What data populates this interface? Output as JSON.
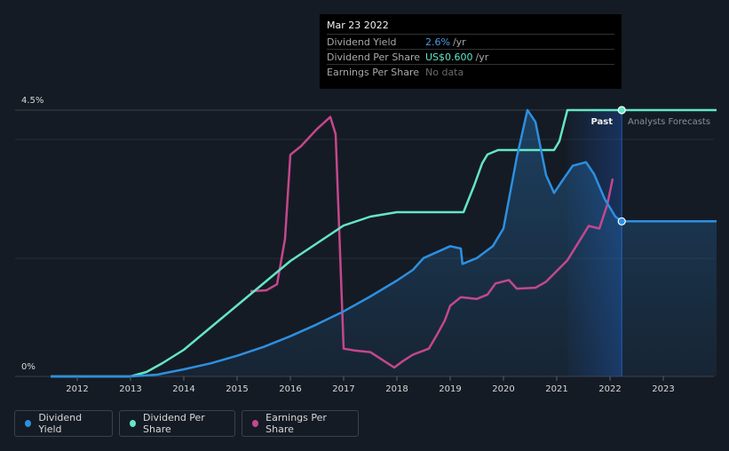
{
  "tooltip": {
    "date": "Mar 23 2022",
    "rows": [
      {
        "label": "Dividend Yield",
        "value": "2.6%",
        "unit": "/yr"
      },
      {
        "label": "Dividend Per Share",
        "value": "US$0.600",
        "unit": "/yr"
      },
      {
        "label": "Earnings Per Share",
        "value": "No data",
        "unit": ""
      }
    ]
  },
  "legend": [
    {
      "label": "Dividend Yield",
      "color": "#2d8fe0"
    },
    {
      "label": "Dividend Per Share",
      "color": "#64e6c6"
    },
    {
      "label": "Earnings Per Share",
      "color": "#c4478e"
    }
  ],
  "annotations": {
    "past": "Past",
    "forecast": "Analysts Forecasts"
  },
  "chart_data": {
    "type": "line",
    "x_ticks": [
      2012,
      2013,
      2014,
      2015,
      2016,
      2017,
      2018,
      2019,
      2020,
      2021,
      2022,
      2023
    ],
    "y_tick_labels": [
      "0%",
      "4.5%"
    ],
    "ylim_percent": [
      0,
      4.5
    ],
    "xlim": [
      2011,
      2024
    ],
    "past_boundary": 2022.22,
    "series": [
      {
        "name": "Dividend Yield",
        "unit": "%",
        "color": "#2d8fe0",
        "points": [
          [
            2011.5,
            0
          ],
          [
            2013,
            0
          ],
          [
            2013.5,
            0.03
          ],
          [
            2014,
            0.12
          ],
          [
            2014.5,
            0.22
          ],
          [
            2015,
            0.35
          ],
          [
            2015.5,
            0.5
          ],
          [
            2016,
            0.68
          ],
          [
            2016.5,
            0.88
          ],
          [
            2017,
            1.1
          ],
          [
            2017.5,
            1.35
          ],
          [
            2018,
            1.62
          ],
          [
            2018.3,
            1.8
          ],
          [
            2018.5,
            2.0
          ],
          [
            2018.8,
            2.12
          ],
          [
            2019,
            2.2
          ],
          [
            2019.2,
            2.16
          ],
          [
            2019.23,
            1.9
          ],
          [
            2019.5,
            2.0
          ],
          [
            2019.8,
            2.2
          ],
          [
            2020,
            2.5
          ],
          [
            2020.25,
            3.7
          ],
          [
            2020.45,
            4.5
          ],
          [
            2020.6,
            4.3
          ],
          [
            2020.8,
            3.4
          ],
          [
            2020.95,
            3.1
          ],
          [
            2021.1,
            3.3
          ],
          [
            2021.3,
            3.56
          ],
          [
            2021.55,
            3.62
          ],
          [
            2021.7,
            3.42
          ],
          [
            2021.9,
            3.0
          ],
          [
            2022.1,
            2.7
          ],
          [
            2022.22,
            2.62
          ],
          [
            2023,
            2.62
          ],
          [
            2024,
            2.62
          ]
        ]
      },
      {
        "name": "Dividend Per Share",
        "unit": "US$",
        "color": "#64e6c6",
        "points": [
          [
            2011.5,
            0
          ],
          [
            2013,
            0
          ],
          [
            2013.3,
            0.01
          ],
          [
            2013.6,
            0.03
          ],
          [
            2014,
            0.06
          ],
          [
            2014.5,
            0.11
          ],
          [
            2015,
            0.16
          ],
          [
            2015.5,
            0.21
          ],
          [
            2016,
            0.26
          ],
          [
            2016.5,
            0.3
          ],
          [
            2017,
            0.34
          ],
          [
            2017.5,
            0.36
          ],
          [
            2018,
            0.37
          ],
          [
            2018.5,
            0.37
          ],
          [
            2019,
            0.37
          ],
          [
            2019.25,
            0.37
          ],
          [
            2019.45,
            0.43
          ],
          [
            2019.6,
            0.48
          ],
          [
            2019.7,
            0.5
          ],
          [
            2019.9,
            0.51
          ],
          [
            2020.95,
            0.51
          ],
          [
            2021.05,
            0.53
          ],
          [
            2021.2,
            0.6
          ],
          [
            2021.4,
            0.6
          ],
          [
            2022.22,
            0.6
          ],
          [
            2024,
            0.6
          ]
        ]
      },
      {
        "name": "Earnings Per Share",
        "unit": "US$",
        "color": "#c4478e",
        "points": [
          [
            2015.25,
            0.89
          ],
          [
            2015.55,
            0.9
          ],
          [
            2015.75,
            0.97
          ],
          [
            2015.9,
            1.5
          ],
          [
            2016,
            2.48
          ],
          [
            2016.2,
            2.58
          ],
          [
            2016.5,
            2.78
          ],
          [
            2016.75,
            2.92
          ],
          [
            2016.85,
            2.72
          ],
          [
            2017,
            0.22
          ],
          [
            2017.2,
            0.2
          ],
          [
            2017.5,
            0.18
          ],
          [
            2017.8,
            0.06
          ],
          [
            2017.95,
            0.0
          ],
          [
            2018.1,
            0.07
          ],
          [
            2018.3,
            0.15
          ],
          [
            2018.6,
            0.22
          ],
          [
            2018.75,
            0.38
          ],
          [
            2018.9,
            0.55
          ],
          [
            2019,
            0.72
          ],
          [
            2019.2,
            0.82
          ],
          [
            2019.5,
            0.8
          ],
          [
            2019.7,
            0.85
          ],
          [
            2019.85,
            0.98
          ],
          [
            2020.1,
            1.02
          ],
          [
            2020.25,
            0.92
          ],
          [
            2020.6,
            0.93
          ],
          [
            2020.8,
            1.0
          ],
          [
            2021.2,
            1.25
          ],
          [
            2021.5,
            1.55
          ],
          [
            2021.6,
            1.65
          ],
          [
            2021.8,
            1.62
          ],
          [
            2021.95,
            1.9
          ],
          [
            2022.05,
            2.2
          ]
        ]
      }
    ]
  }
}
